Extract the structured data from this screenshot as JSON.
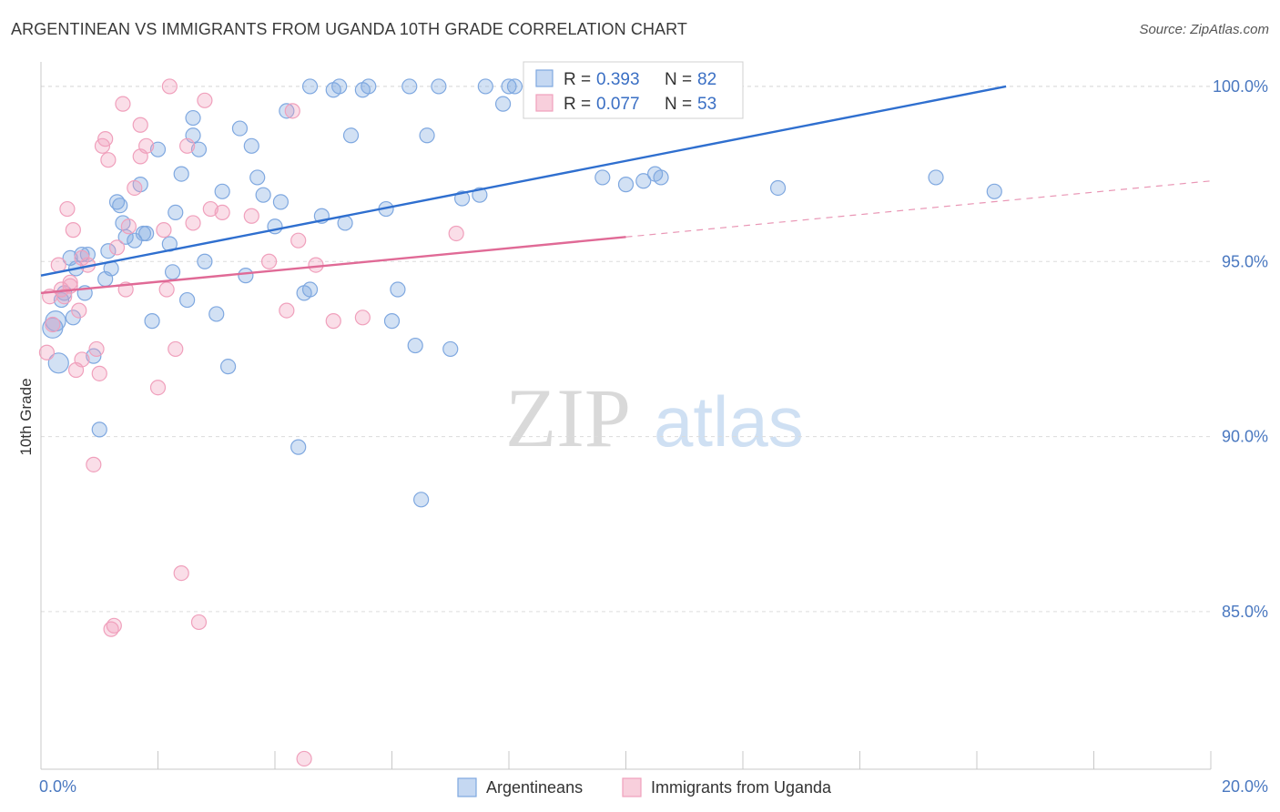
{
  "header": {
    "title": "ARGENTINEAN VS IMMIGRANTS FROM UGANDA 10TH GRADE CORRELATION CHART",
    "source": "Source: ZipAtlas.com"
  },
  "watermark": {
    "zip": "ZIP",
    "atlas": "atlas"
  },
  "chart_data": {
    "type": "scatter",
    "title": "ARGENTINEAN VS IMMIGRANTS FROM UGANDA 10TH GRADE CORRELATION CHART",
    "xlabel": "",
    "ylabel": "10th Grade",
    "xlim": [
      0,
      20
    ],
    "ylim": [
      80.5,
      100.7
    ],
    "x_tick_labels": [
      "0.0%",
      "20.0%"
    ],
    "y_ticks": [
      85,
      90,
      95,
      100
    ],
    "y_tick_labels": [
      "85.0%",
      "90.0%",
      "95.0%",
      "100.0%"
    ],
    "grid": true,
    "legend_position": "top-center",
    "series": [
      {
        "name": "Argentineans",
        "color": "#7fa8e0",
        "line_color": "#2f6fcf",
        "R": "0.393",
        "N": "82",
        "trend": {
          "x": [
            0,
            16.5
          ],
          "y": [
            94.6,
            100.0
          ]
        },
        "x": [
          0.2,
          0.25,
          0.3,
          0.35,
          0.4,
          0.5,
          0.55,
          0.6,
          0.7,
          0.75,
          0.8,
          0.9,
          1.0,
          1.1,
          1.15,
          1.2,
          1.3,
          1.35,
          1.4,
          1.45,
          1.6,
          1.7,
          1.75,
          1.8,
          1.9,
          2.0,
          2.2,
          2.25,
          2.3,
          2.4,
          2.5,
          2.6,
          2.6,
          2.7,
          2.8,
          3.0,
          3.1,
          3.2,
          3.4,
          3.5,
          3.6,
          3.7,
          3.8,
          4.0,
          4.1,
          4.2,
          4.4,
          4.5,
          4.6,
          4.6,
          4.8,
          5.0,
          5.1,
          5.2,
          5.3,
          5.5,
          5.6,
          5.9,
          6.0,
          6.1,
          6.3,
          6.4,
          6.5,
          6.6,
          6.8,
          7.0,
          7.2,
          7.5,
          7.6,
          7.9,
          8.0,
          8.1,
          8.4,
          8.5,
          9.6,
          10.0,
          10.3,
          10.5,
          10.6,
          12.6,
          15.3,
          16.3
        ],
        "y": [
          93.1,
          93.3,
          92.1,
          93.9,
          94.1,
          95.1,
          93.4,
          94.8,
          95.2,
          94.1,
          95.2,
          92.3,
          90.2,
          94.5,
          95.3,
          94.8,
          96.7,
          96.6,
          96.1,
          95.7,
          95.6,
          97.2,
          95.8,
          95.8,
          93.3,
          98.2,
          95.5,
          94.7,
          96.4,
          97.5,
          93.9,
          98.6,
          99.1,
          98.2,
          95.0,
          93.5,
          97.0,
          92.0,
          98.8,
          94.6,
          98.3,
          97.4,
          96.9,
          96.0,
          96.7,
          99.3,
          89.7,
          94.1,
          100.0,
          94.2,
          96.3,
          99.9,
          100.0,
          96.1,
          98.6,
          99.9,
          100.0,
          96.5,
          93.3,
          94.2,
          100.0,
          92.6,
          88.2,
          98.6,
          100.0,
          92.5,
          96.8,
          96.9,
          100.0,
          99.5,
          100.0,
          100.0,
          100.0,
          100.0,
          97.4,
          97.2,
          97.3,
          97.5,
          97.4,
          97.1,
          97.4,
          97.0
        ]
      },
      {
        "name": "Immigrants from Uganda",
        "color": "#f0a0bc",
        "line_color": "#e06a96",
        "R": "0.077",
        "N": "53",
        "trend": {
          "x": [
            0,
            10.0
          ],
          "y": [
            94.1,
            95.7
          ]
        },
        "trend_dashed": {
          "x": [
            10.0,
            20.0
          ],
          "y": [
            95.7,
            97.3
          ]
        },
        "x": [
          0.1,
          0.15,
          0.2,
          0.3,
          0.35,
          0.4,
          0.45,
          0.5,
          0.5,
          0.55,
          0.6,
          0.65,
          0.7,
          0.7,
          0.8,
          0.9,
          0.95,
          1.0,
          1.05,
          1.1,
          1.15,
          1.2,
          1.25,
          1.3,
          1.4,
          1.45,
          1.5,
          1.6,
          1.7,
          1.7,
          1.8,
          2.0,
          2.1,
          2.15,
          2.2,
          2.3,
          2.4,
          2.5,
          2.6,
          2.7,
          2.8,
          2.9,
          3.1,
          3.6,
          3.9,
          4.2,
          4.3,
          4.4,
          4.5,
          4.7,
          5.0,
          5.5,
          7.1
        ],
        "y": [
          92.4,
          94.0,
          93.2,
          94.9,
          94.2,
          94.0,
          96.5,
          94.3,
          94.4,
          95.9,
          91.9,
          93.6,
          95.1,
          92.2,
          94.9,
          89.2,
          92.5,
          91.8,
          98.3,
          98.5,
          97.9,
          84.5,
          84.6,
          95.4,
          99.5,
          94.2,
          96.0,
          97.1,
          98.0,
          98.9,
          98.3,
          91.4,
          95.9,
          94.2,
          100.0,
          92.5,
          86.1,
          98.3,
          96.1,
          84.7,
          99.6,
          96.5,
          96.4,
          96.3,
          95.0,
          93.6,
          99.3,
          95.6,
          80.8,
          94.9,
          93.3,
          93.4,
          95.8
        ]
      }
    ]
  }
}
